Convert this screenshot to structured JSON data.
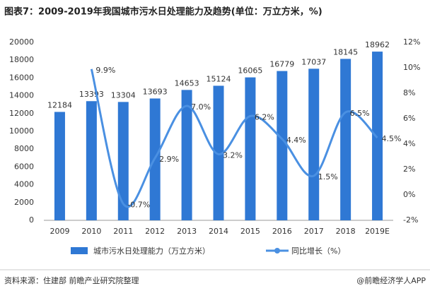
{
  "chart_data": {
    "type": "bar-line",
    "title": "图表7：2009-2019年我国城市污水日处理能力及趋势(单位：万立方米，%)",
    "categories": [
      "2009",
      "2010",
      "2011",
      "2012",
      "2013",
      "2014",
      "2015",
      "2016",
      "2017",
      "2018",
      "2019E"
    ],
    "series": [
      {
        "name": "城市污水日处理能力（万立方米）",
        "type": "bar",
        "color": "#2f78d4",
        "values": [
          12184,
          13393,
          13304,
          13693,
          14653,
          15124,
          16065,
          16779,
          17037,
          18145,
          18962
        ]
      },
      {
        "name": "同比增长（%）",
        "type": "line",
        "axis": "y2",
        "color": "#4a90e2",
        "smooth": true,
        "values": [
          null,
          9.9,
          -0.7,
          2.9,
          7.0,
          3.2,
          6.2,
          4.4,
          1.5,
          6.5,
          4.5
        ],
        "value_labels": [
          null,
          "9.9%",
          "-0.7%",
          "2.9%",
          "7.0%",
          "3.2%",
          "6.2%",
          "4.4%",
          "1.5%",
          "6.5%",
          "4.5%"
        ]
      }
    ],
    "ylim": [
      0,
      20000
    ],
    "yticks": [
      0,
      2000,
      4000,
      6000,
      8000,
      10000,
      12000,
      14000,
      16000,
      18000,
      20000
    ],
    "y2lim": [
      -2,
      12
    ],
    "y2ticks": [
      {
        "value": -2,
        "label": "-2%"
      },
      {
        "value": 0,
        "label": "0%"
      },
      {
        "value": 2,
        "label": "2%"
      },
      {
        "value": 4,
        "label": "4%"
      },
      {
        "value": 6,
        "label": "6%"
      },
      {
        "value": 8,
        "label": "8%"
      },
      {
        "value": 10,
        "label": "10%"
      },
      {
        "value": 12,
        "label": "12%"
      }
    ],
    "source": "资料来源：住建部 前瞻产业研究院整理",
    "brand": "@前瞻经济学人APP"
  }
}
